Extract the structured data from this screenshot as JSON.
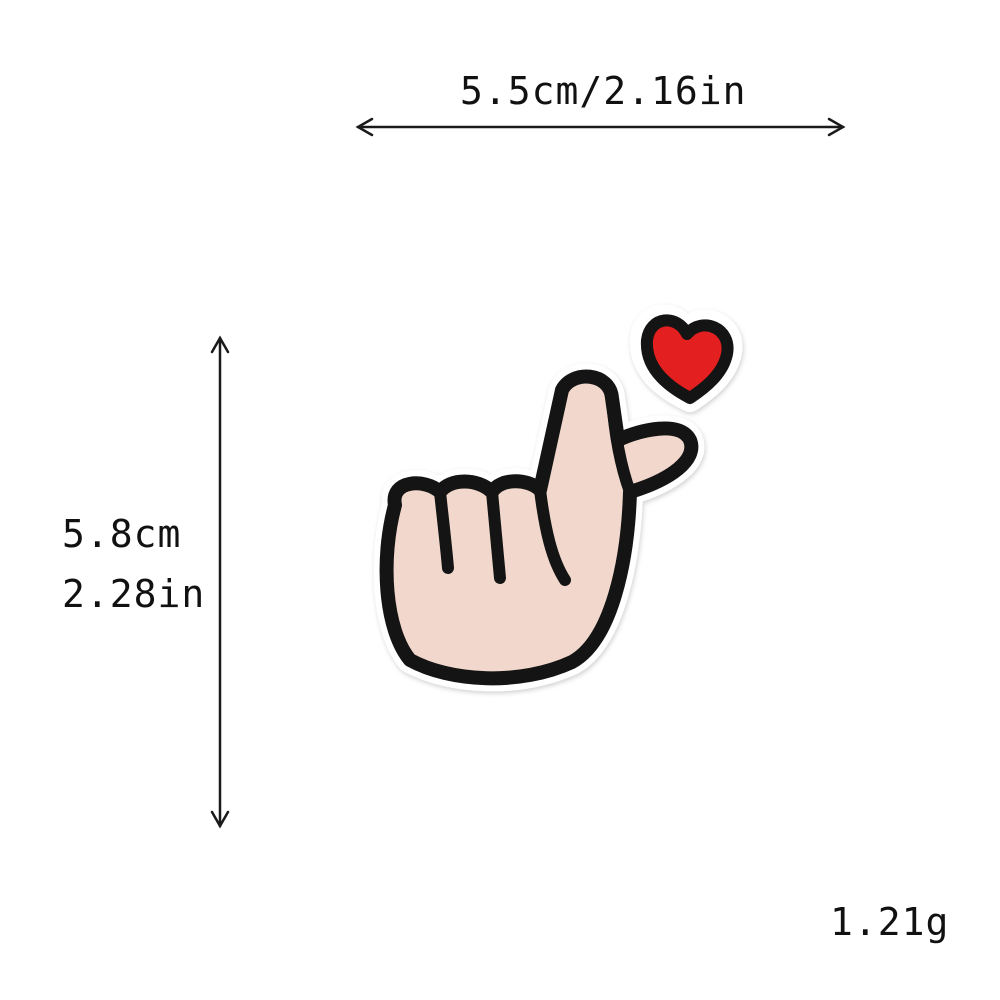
{
  "dimensions": {
    "width_text": "5.5cm/2.16in",
    "height_cm_text": "5.8cm",
    "height_in_text": "2.28in"
  },
  "weight_text": "1.21g",
  "colors": {
    "skin": "#f2d8cc",
    "outline": "#141414",
    "heart": "#e41f1f",
    "border": "#ffffff",
    "arrow": "#1a1a1a"
  }
}
